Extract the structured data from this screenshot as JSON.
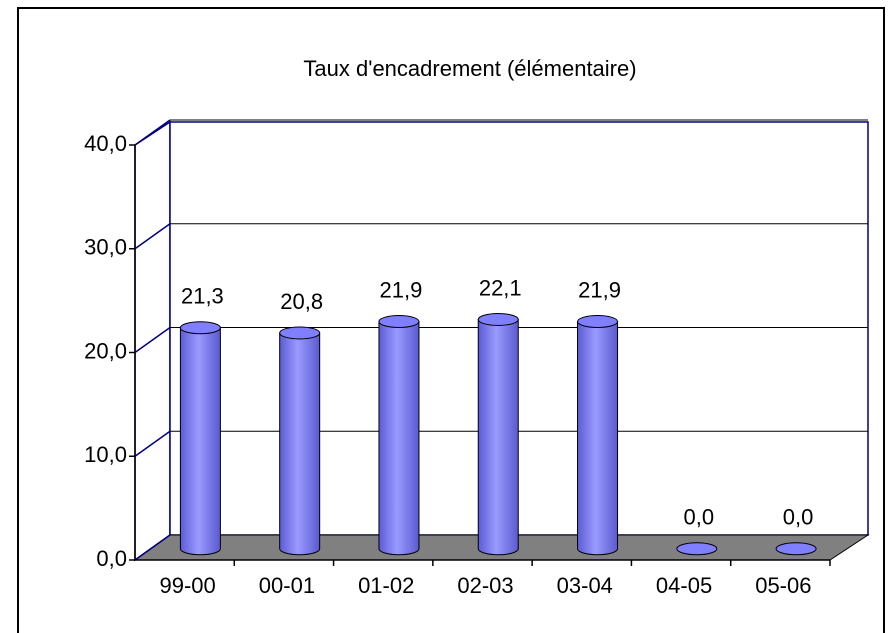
{
  "chart_data": {
    "type": "bar",
    "title": "Taux d'encadrement (élémentaire)",
    "categories": [
      "99-00",
      "00-01",
      "01-02",
      "02-03",
      "03-04",
      "04-05",
      "05-06"
    ],
    "values": [
      21.3,
      20.8,
      21.9,
      22.1,
      21.9,
      0,
      0
    ],
    "value_labels": [
      "21,3",
      "20,8",
      "21,9",
      "22,1",
      "21,9",
      "0,0",
      "0,0"
    ],
    "color": "#7f7fff",
    "ylim": [
      0,
      40
    ],
    "yticks": [
      {
        "value": 0,
        "label": "0,0"
      },
      {
        "value": 10,
        "label": "10,0"
      },
      {
        "value": 20,
        "label": "20,0"
      },
      {
        "value": 30,
        "label": "30,0"
      },
      {
        "value": 40,
        "label": "40,0"
      }
    ],
    "grid": true
  }
}
